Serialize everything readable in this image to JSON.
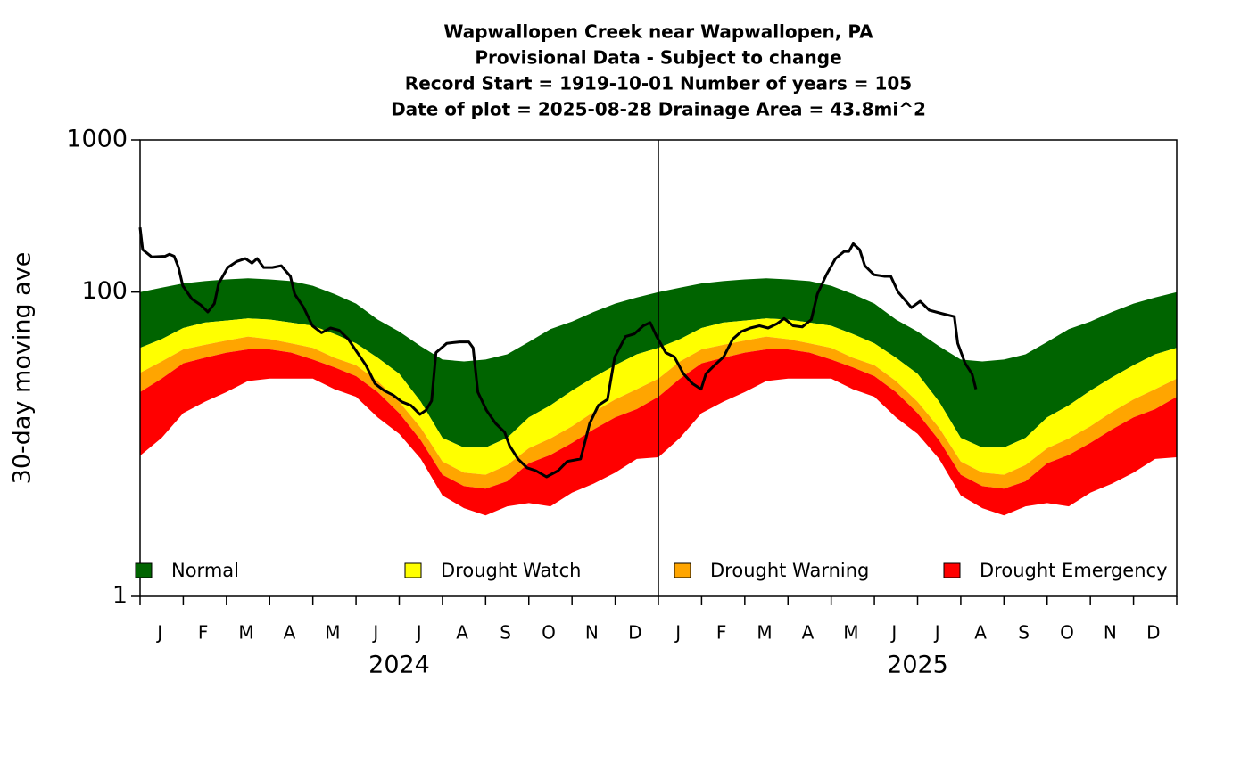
{
  "chart_data": {
    "type": "band-area",
    "title": [
      "Wapwallopen Creek near Wapwallopen, PA",
      "Provisional Data - Subject to change",
      "Record Start = 1919-10-01  Number of years = 105",
      "Date of plot = 2025-08-28  Drainage Area = 43.8mi^2"
    ],
    "y_label": "30-day moving ave",
    "log_y": true,
    "ylim": [
      1,
      1000
    ],
    "yticks": [
      1,
      100,
      1000
    ],
    "xlim": [
      0,
      24
    ],
    "months": [
      "J",
      "F",
      "M",
      "A",
      "M",
      "J",
      "J",
      "A",
      "S",
      "O",
      "N",
      "D",
      "J",
      "F",
      "M",
      "A",
      "M",
      "J",
      "J",
      "A",
      "S",
      "O",
      "N",
      "D"
    ],
    "years": [
      "2024",
      "2025"
    ],
    "x": [
      0,
      0.5,
      1,
      1.5,
      2,
      2.5,
      3,
      3.5,
      4,
      4.5,
      5,
      5.5,
      6,
      6.5,
      7,
      7.5,
      8,
      8.5,
      9,
      9.5,
      10,
      10.5,
      11,
      11.5,
      12,
      12.5,
      13,
      13.5,
      14,
      14.5,
      15,
      15.5,
      16,
      16.5,
      17,
      17.5,
      18,
      18.5,
      19,
      19.5,
      20,
      20.5,
      21,
      21.5,
      22,
      22.5,
      23,
      23.5,
      24
    ],
    "series": [
      {
        "name": "Normal",
        "color": "#006400",
        "values": [
          100,
          107,
          114,
          118,
          121,
          123,
          121,
          118,
          110,
          97,
          84,
          66,
          55,
          44,
          36,
          35,
          36,
          39,
          47,
          57,
          64,
          74,
          84,
          92,
          100,
          107,
          114,
          118,
          121,
          123,
          121,
          118,
          110,
          97,
          84,
          66,
          55,
          44,
          36,
          35,
          36,
          39,
          47,
          57,
          64,
          74,
          84,
          92,
          100
        ]
      },
      {
        "name": "Drought Watch",
        "color": "#ffff00",
        "values": [
          43,
          49,
          58,
          63,
          65,
          67,
          66,
          63,
          60,
          53,
          46,
          37,
          29,
          19,
          11,
          9.5,
          9.5,
          11,
          15,
          18,
          22.5,
          27.5,
          33,
          39,
          43,
          49,
          58,
          63,
          65,
          67,
          66,
          63,
          60,
          53,
          46,
          37,
          29,
          19,
          11,
          9.5,
          9.5,
          11,
          15,
          18,
          22.5,
          27.5,
          33,
          39,
          43
        ]
      },
      {
        "name": "Drought Warning",
        "color": "#ffa500",
        "values": [
          29.5,
          35,
          42,
          45,
          48,
          51,
          49,
          46,
          43,
          37,
          33,
          26,
          19,
          12.8,
          7.7,
          6.5,
          6.3,
          7.3,
          9.4,
          10.9,
          13.1,
          16.3,
          19.7,
          23,
          27,
          35,
          42,
          45,
          48,
          51,
          49,
          46,
          43,
          37,
          33,
          26,
          19,
          12.8,
          7.7,
          6.5,
          6.3,
          7.3,
          9.4,
          10.9,
          13.1,
          16.3,
          19.7,
          23,
          27
        ]
      },
      {
        "name": "Drought Emergency",
        "color": "#ff0000",
        "values": [
          22,
          27,
          34,
          37,
          40,
          42,
          42,
          40,
          36,
          32,
          28,
          22,
          16,
          10.6,
          6.3,
          5.3,
          5.1,
          5.7,
          7.5,
          8.5,
          10.2,
          12.5,
          15,
          17,
          20.5,
          27,
          34,
          37,
          40,
          42,
          42,
          40,
          36,
          32,
          28,
          22,
          16,
          10.6,
          6.3,
          5.3,
          5.1,
          5.7,
          7.5,
          8.5,
          10.2,
          12.5,
          15,
          17,
          20.5
        ],
        "lower": [
          8.4,
          11,
          16,
          19,
          22,
          26,
          27,
          27,
          27,
          23,
          20.5,
          15,
          11.7,
          8,
          4.6,
          3.8,
          3.4,
          3.9,
          4.1,
          3.9,
          4.8,
          5.5,
          6.5,
          8,
          8.2,
          11,
          16,
          19,
          22,
          26,
          27,
          27,
          27,
          23,
          20.5,
          15,
          11.7,
          8,
          4.6,
          3.8,
          3.4,
          3.9,
          4.1,
          3.9,
          4.8,
          5.5,
          6.5,
          8,
          8.2
        ]
      }
    ],
    "flow": {
      "color": "#000000",
      "x": [
        0,
        0.06,
        0.27,
        0.58,
        0.68,
        0.79,
        0.89,
        0.99,
        1.2,
        1.41,
        1.57,
        1.72,
        1.82,
        2.03,
        2.24,
        2.44,
        2.59,
        2.71,
        2.86,
        3.06,
        3.27,
        3.48,
        3.58,
        3.79,
        3.99,
        4.2,
        4.41,
        4.61,
        4.82,
        5.03,
        5.23,
        5.44,
        5.65,
        5.86,
        6.06,
        6.27,
        6.48,
        6.62,
        6.75,
        6.85,
        7.1,
        7.4,
        7.61,
        7.71,
        7.82,
        8.02,
        8.23,
        8.44,
        8.55,
        8.75,
        8.96,
        9.16,
        9.41,
        9.68,
        9.89,
        10.2,
        10.41,
        10.61,
        10.82,
        10.99,
        11.24,
        11.44,
        11.65,
        11.81,
        11.96,
        12.17,
        12.37,
        12.58,
        12.79,
        12.99,
        13.1,
        13.3,
        13.51,
        13.72,
        13.92,
        14.13,
        14.34,
        14.54,
        14.75,
        14.91,
        15.12,
        15.33,
        15.54,
        15.68,
        15.89,
        16.1,
        16.3,
        16.41,
        16.51,
        16.66,
        16.78,
        16.99,
        17.24,
        17.38,
        17.55,
        17.86,
        18.06,
        18.27,
        18.58,
        18.85,
        18.93,
        19.1,
        19.26,
        19.35
      ],
      "values": [
        266,
        190,
        170,
        172,
        177,
        172,
        145,
        110,
        90,
        82,
        74,
        84,
        114,
        145,
        159,
        166,
        155,
        166,
        145,
        145,
        149,
        127,
        97,
        79,
        60,
        54,
        58,
        56,
        49,
        40,
        33,
        25,
        22.5,
        21,
        19,
        18,
        15.7,
        16.7,
        19.3,
        40,
        46,
        47,
        47,
        43,
        22,
        16.7,
        13.7,
        12,
        9.8,
        8,
        7,
        6.7,
        6.1,
        6.7,
        7.7,
        8,
        13.7,
        18,
        19.7,
        37.5,
        51,
        53,
        60,
        63,
        51,
        40,
        37.5,
        29,
        25,
        23,
        29,
        33,
        37.5,
        49,
        55,
        58,
        60,
        58,
        62,
        67,
        60,
        59,
        66,
        97,
        130,
        166,
        185,
        185,
        208,
        190,
        149,
        130,
        127,
        127,
        100,
        79,
        87,
        76,
        72,
        69,
        46,
        34,
        29,
        23
      ]
    }
  }
}
